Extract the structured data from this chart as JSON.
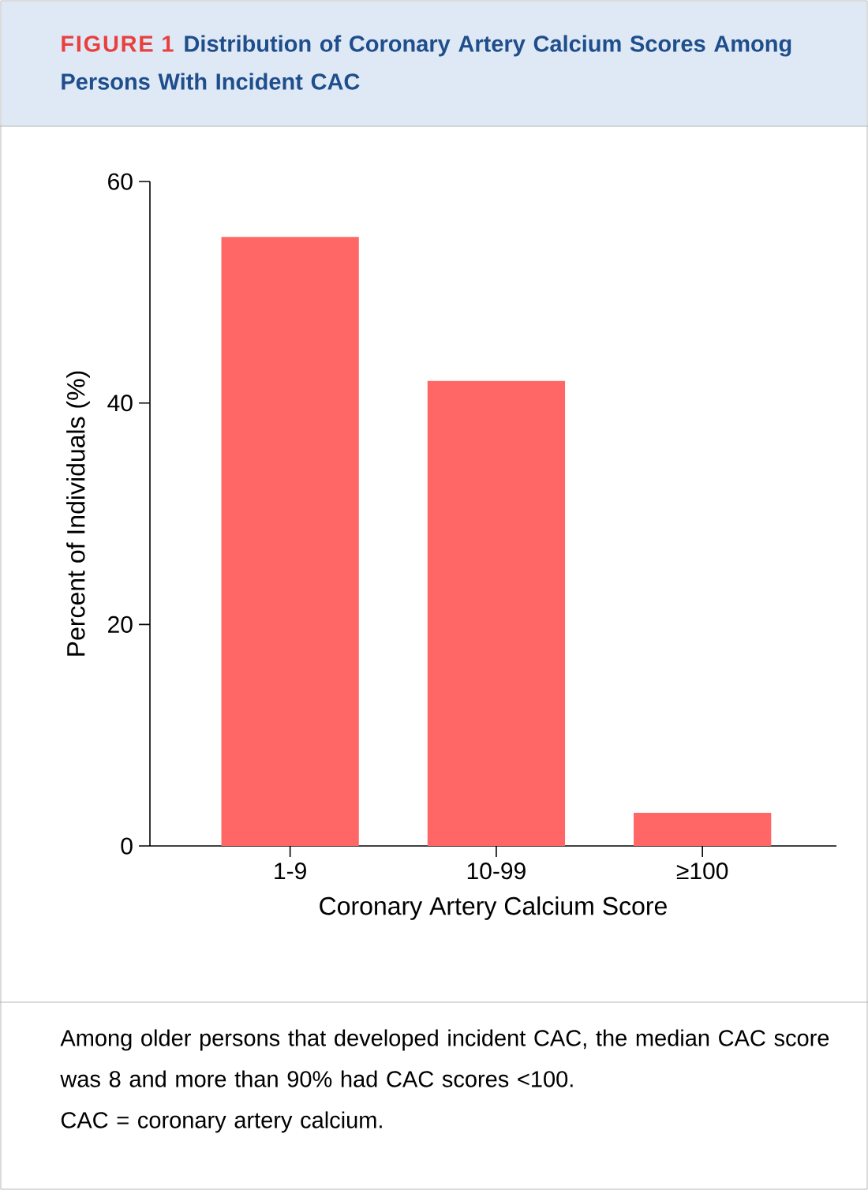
{
  "chart_data": {
    "type": "bar",
    "title": "FIGURE 1",
    "subtitle": "Distribution of Coronary Artery Calcium Scores Among Persons With Incident CAC",
    "xlabel": "Coronary Artery Calcium Score",
    "ylabel": "Percent of Individuals (%)",
    "categories": [
      "1-9",
      "10-99",
      "≥100"
    ],
    "values": [
      55,
      42,
      3
    ],
    "color": "#ff6666",
    "ylim": [
      0,
      60
    ],
    "yticks": [
      0,
      20,
      40,
      60
    ],
    "annotations": [
      "Among older persons that developed incident CAC, the median CAC score was 8 and more than 90% had CAC scores <100.",
      "CAC = coronary artery calcium."
    ]
  }
}
